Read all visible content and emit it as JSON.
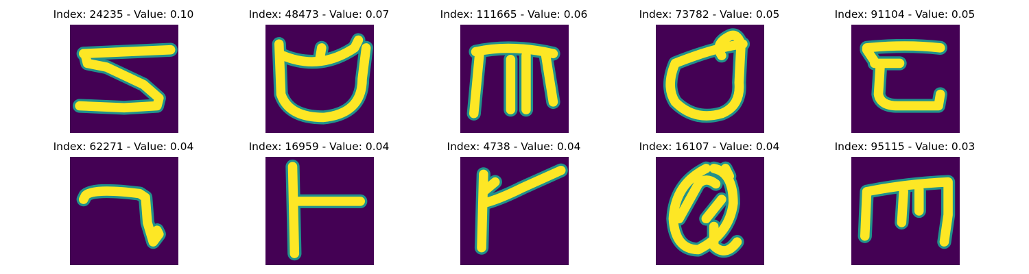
{
  "colors": {
    "background": "#440154",
    "edge": "#21918c",
    "stroke": "#fde725"
  },
  "panels": [
    {
      "title": "Index: 24235 - Value: 0.10",
      "glyph": "glyph-5"
    },
    {
      "title": "Index: 48473 - Value: 0.07",
      "glyph": "glyph-cup"
    },
    {
      "title": "Index: 111665 - Value: 0.06",
      "glyph": "glyph-m-comb"
    },
    {
      "title": "Index: 73782 - Value: 0.05",
      "glyph": "glyph-d"
    },
    {
      "title": "Index: 91104 - Value: 0.05",
      "glyph": "glyph-e-open"
    },
    {
      "title": "Index: 62271 - Value: 0.04",
      "glyph": "glyph-7"
    },
    {
      "title": "Index: 16959 - Value: 0.04",
      "glyph": "glyph-t-side"
    },
    {
      "title": "Index: 4738 - Value: 0.04",
      "glyph": "glyph-r"
    },
    {
      "title": "Index: 16107 - Value: 0.04",
      "glyph": "glyph-q"
    },
    {
      "title": "Index: 95115 - Value: 0.03",
      "glyph": "glyph-m"
    }
  ]
}
